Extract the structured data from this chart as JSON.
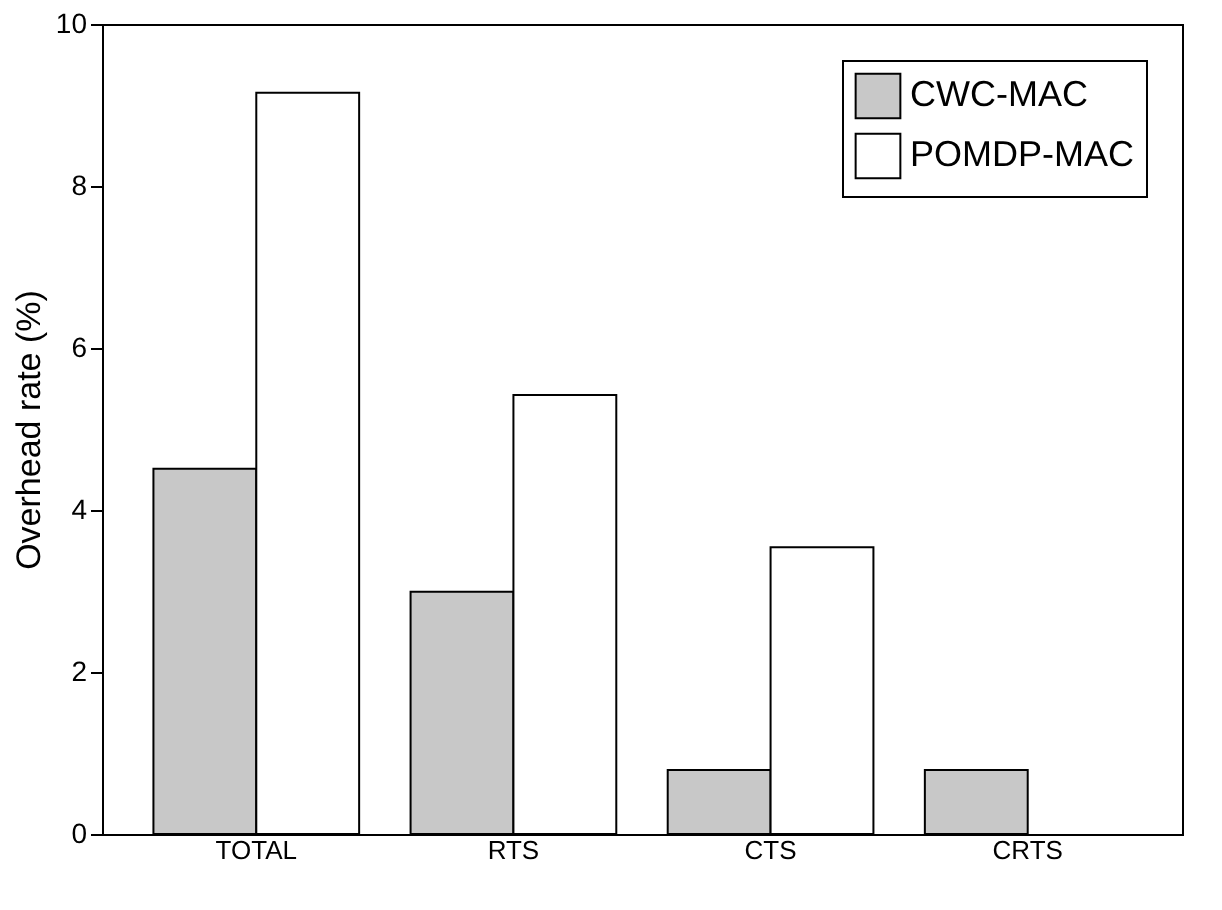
{
  "chart_data": {
    "type": "bar",
    "ylabel": "Overhead rate (%)",
    "categories": [
      "TOTAL",
      "RTS",
      "CTS",
      "CRTS"
    ],
    "series": [
      {
        "name": "CWC-MAC",
        "color": "#c8c8c8",
        "values": [
          4.51,
          2.99,
          0.79,
          0.79
        ]
      },
      {
        "name": "POMDP-MAC",
        "color": "#ffffff",
        "values": [
          9.15,
          5.42,
          3.54,
          null
        ]
      }
    ],
    "ylim": [
      0,
      10
    ],
    "yticks": [
      0,
      2,
      4,
      6,
      8,
      10
    ],
    "grid": false,
    "legend": "top right"
  }
}
